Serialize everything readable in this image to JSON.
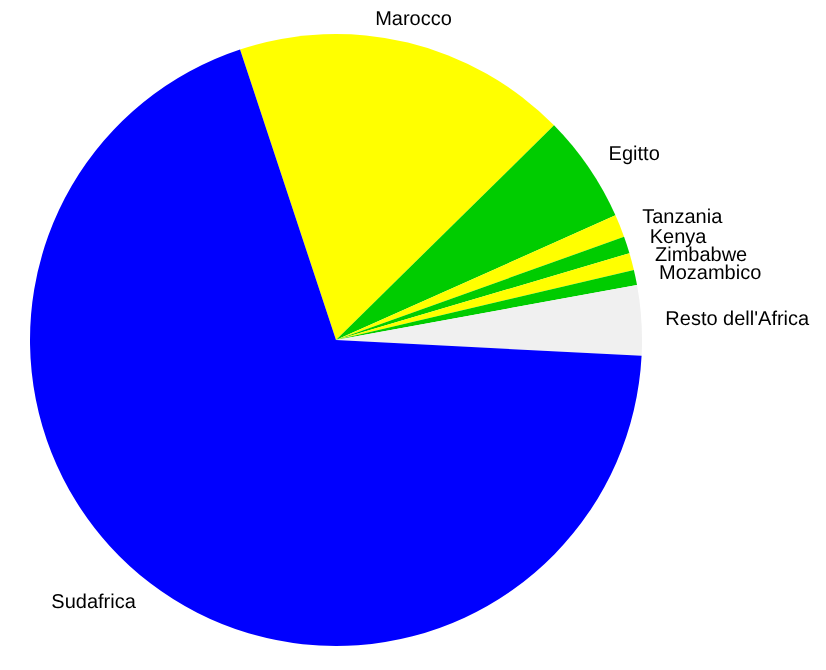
{
  "chart_data": {
    "type": "pie",
    "categories": [
      "Marocco",
      "Egitto",
      "Tanzania",
      "Kenya",
      "Zimbabwe",
      "Mozambico",
      "Resto dell'Africa",
      "Sudafrica"
    ],
    "values": [
      17.7,
      5.7,
      1.2,
      0.9,
      0.9,
      0.8,
      3.7,
      69.1
    ],
    "colors": [
      "#ffff00",
      "#00cc00",
      "#ffff00",
      "#00cc00",
      "#ffff00",
      "#00cc00",
      "#f0f0f0",
      "#0000ff"
    ]
  }
}
